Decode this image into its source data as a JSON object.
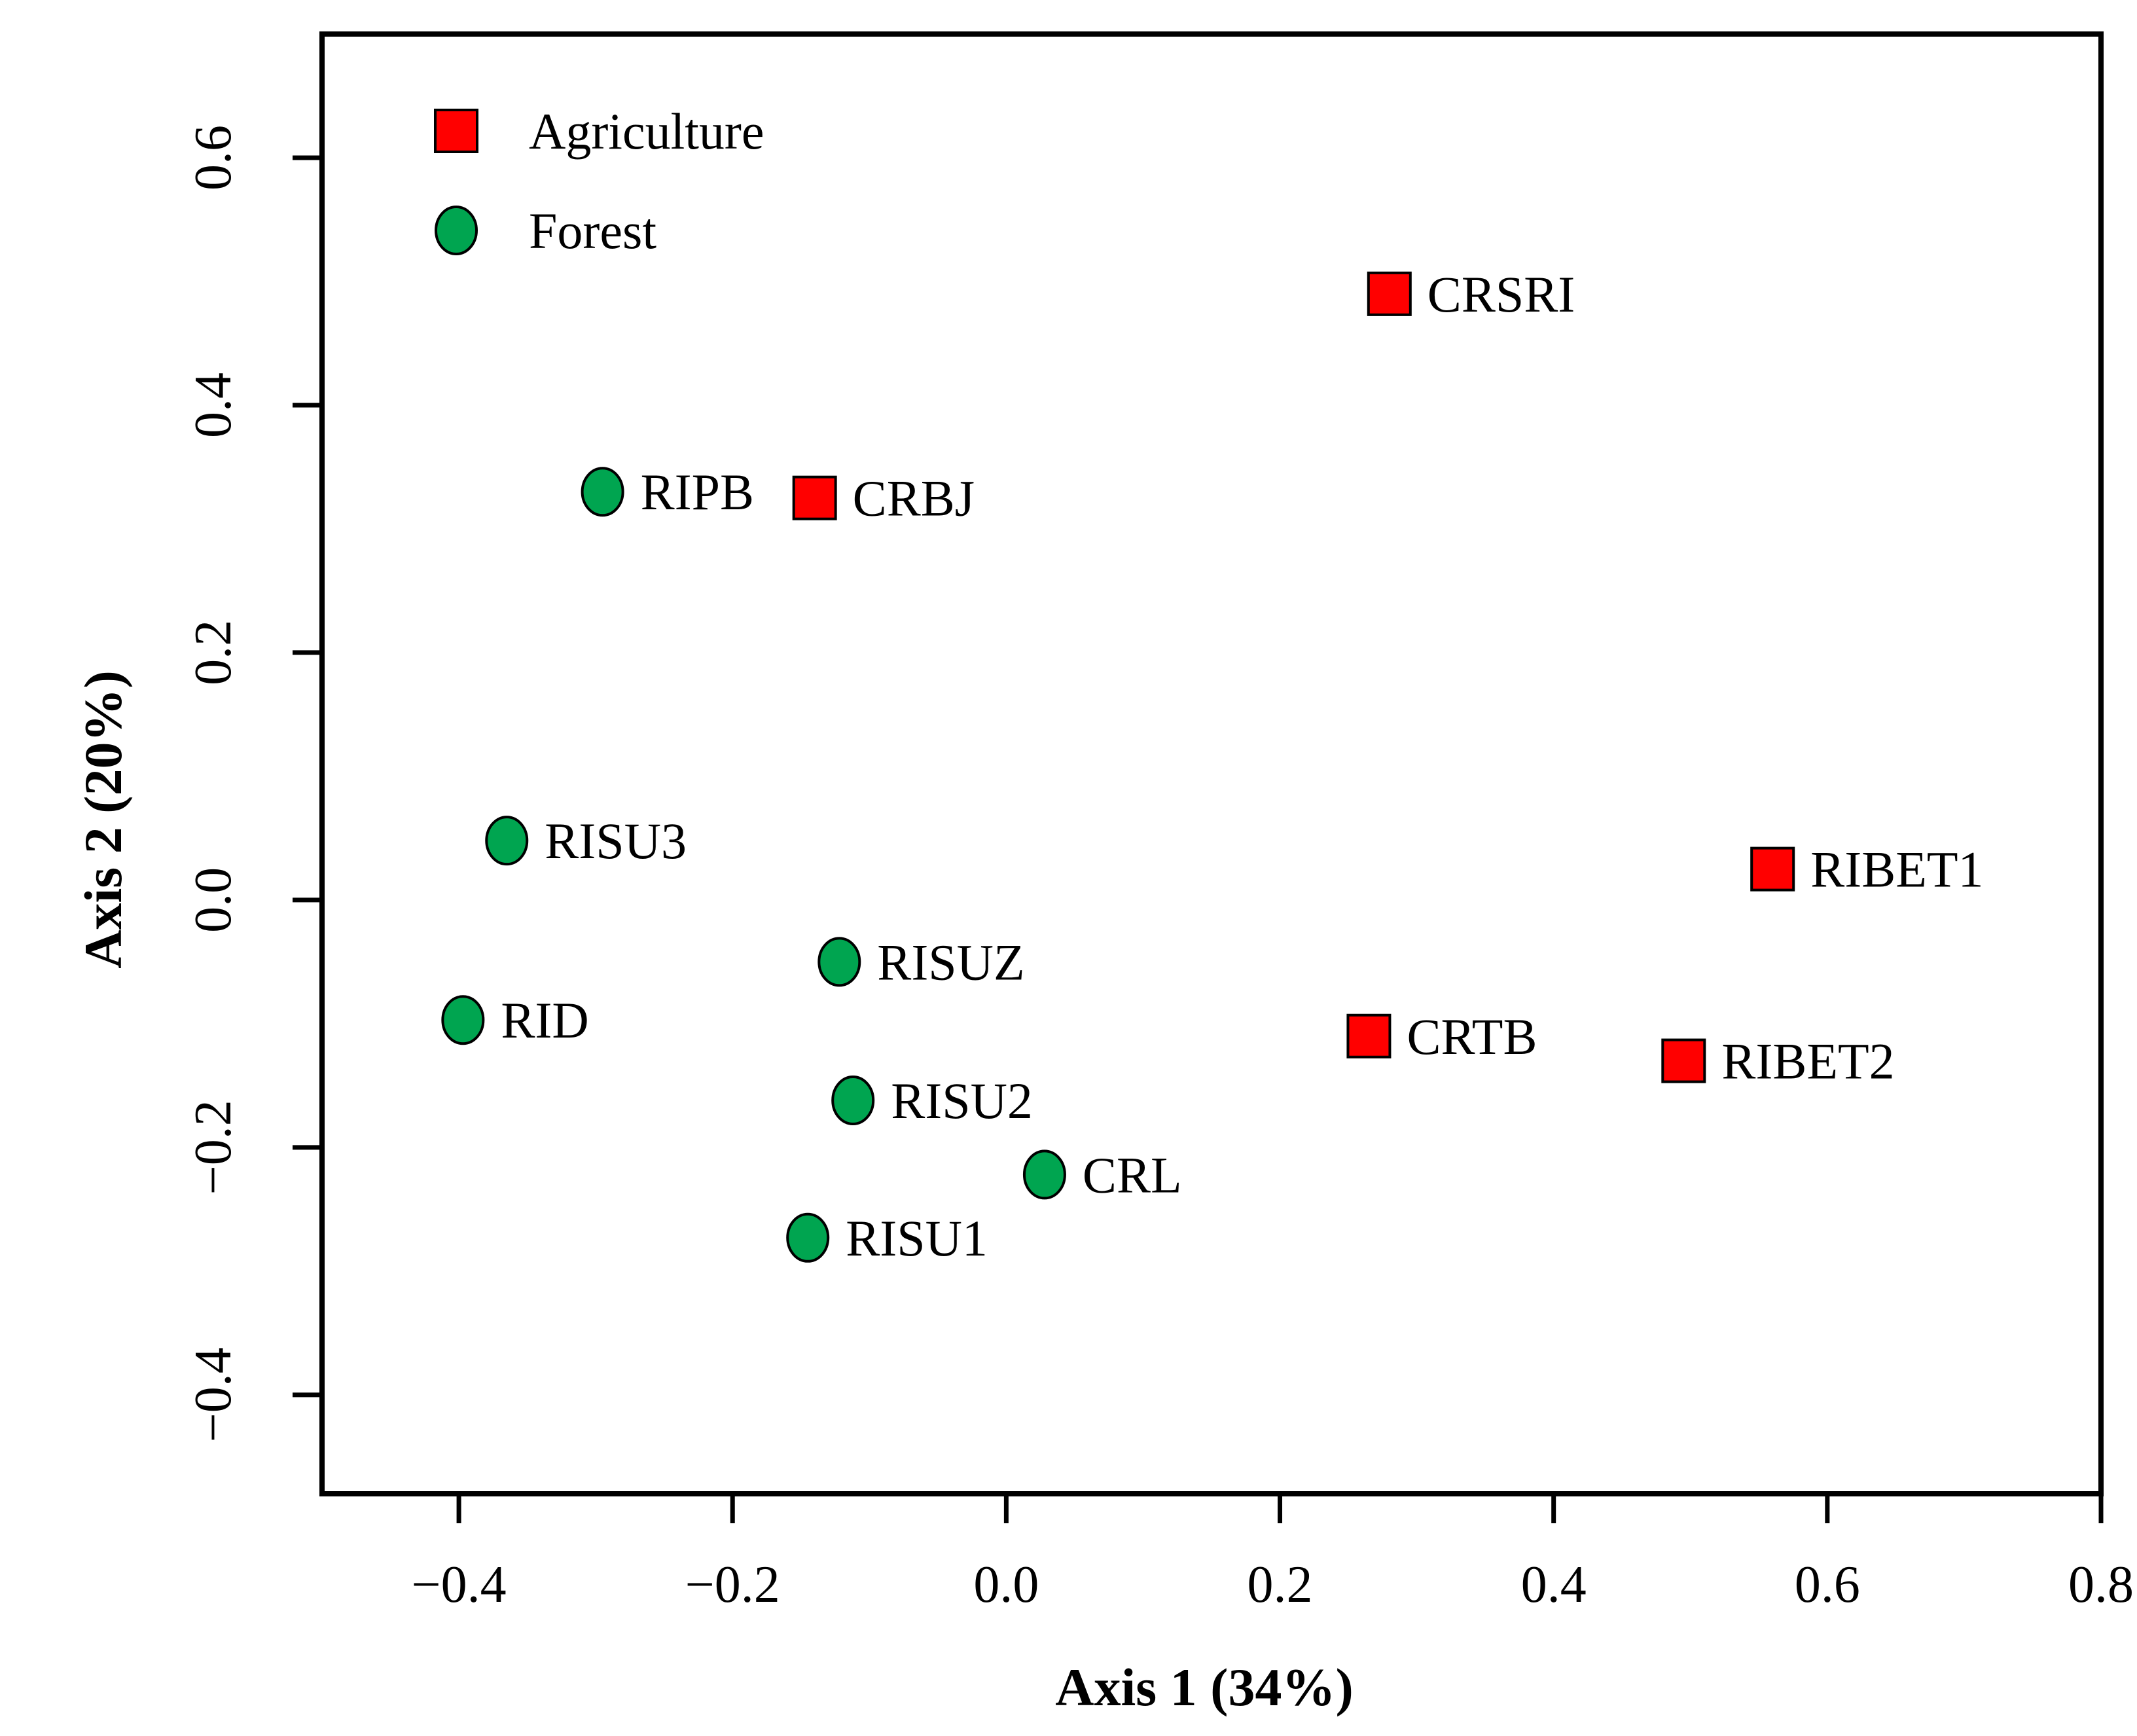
{
  "chart_data": {
    "type": "scatter",
    "title": "",
    "xlabel": "Axis 1 (34%)",
    "ylabel": "Axis 2 (20%)",
    "xlim": [
      -0.5,
      0.8
    ],
    "ylim": [
      -0.48,
      0.7
    ],
    "x_ticks": [
      -0.4,
      -0.2,
      0.0,
      0.2,
      0.4,
      0.6,
      0.8
    ],
    "x_tick_labels": [
      "−0.4",
      "−0.2",
      "0.0",
      "0.2",
      "0.4",
      "0.6",
      "0.8"
    ],
    "y_ticks": [
      -0.4,
      -0.2,
      0.0,
      0.2,
      0.4,
      0.6
    ],
    "y_tick_labels": [
      "−0.4",
      "−0.2",
      "0.0",
      "0.2",
      "0.4",
      "0.6"
    ],
    "grid": false,
    "legend_position": "top-left",
    "series": [
      {
        "name": "Agriculture",
        "marker": "square",
        "color": "#ff0000",
        "points": [
          {
            "label": "CRSRI",
            "x": 0.28,
            "y": 0.49
          },
          {
            "label": "CRBJ",
            "x": -0.14,
            "y": 0.325
          },
          {
            "label": "RIBET1",
            "x": 0.56,
            "y": 0.025
          },
          {
            "label": "CRTB",
            "x": 0.265,
            "y": -0.11
          },
          {
            "label": "RIBET2",
            "x": 0.495,
            "y": -0.13
          }
        ]
      },
      {
        "name": "Forest",
        "marker": "circle",
        "color": "#00a550",
        "points": [
          {
            "label": "RIPB",
            "x": -0.295,
            "y": 0.33
          },
          {
            "label": "RISU3",
            "x": -0.365,
            "y": 0.048
          },
          {
            "label": "RISUZ",
            "x": -0.122,
            "y": -0.05
          },
          {
            "label": "RID",
            "x": -0.397,
            "y": -0.097
          },
          {
            "label": "RISU2",
            "x": -0.112,
            "y": -0.162
          },
          {
            "label": "CRL",
            "x": 0.028,
            "y": -0.222
          },
          {
            "label": "RISU1",
            "x": -0.145,
            "y": -0.273
          }
        ]
      }
    ]
  }
}
